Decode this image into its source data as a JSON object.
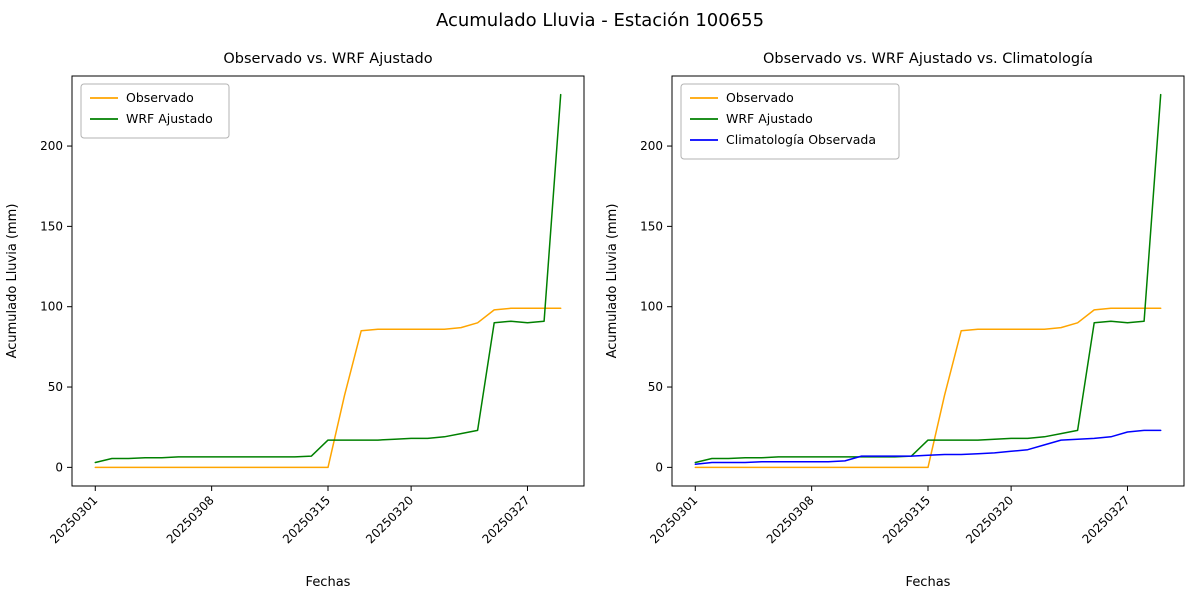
{
  "figure_title": "Acumulado Lluvia - Estación 100655",
  "chart_data": [
    {
      "type": "line",
      "title": "Observado vs. WRF Ajustado",
      "xlabel": "Fechas",
      "ylabel": "Acumulado Lluvia (mm)",
      "legend_position": "upper-left",
      "grid": false,
      "ylim": [
        -11.6,
        243.6
      ],
      "y_ticks": [
        0,
        50,
        100,
        150,
        200
      ],
      "x_tick_labels": [
        "20250301",
        "20250308",
        "20250315",
        "20250320",
        "20250327"
      ],
      "dates": [
        "20250301",
        "20250302",
        "20250303",
        "20250304",
        "20250305",
        "20250306",
        "20250307",
        "20250308",
        "20250309",
        "20250310",
        "20250311",
        "20250312",
        "20250313",
        "20250314",
        "20250315",
        "20250316",
        "20250317",
        "20250318",
        "20250319",
        "20250320",
        "20250321",
        "20250322",
        "20250323",
        "20250324",
        "20250325",
        "20250326",
        "20250327",
        "20250328",
        "20250329"
      ],
      "series": [
        {
          "name": "Observado",
          "color": "#ffa500",
          "values": [
            0,
            0,
            0,
            0,
            0,
            0,
            0,
            0,
            0,
            0,
            0,
            0,
            0,
            0,
            0,
            45,
            85,
            86,
            86,
            86,
            86,
            86,
            87,
            90,
            98,
            99,
            99,
            99,
            99
          ]
        },
        {
          "name": "WRF Ajustado",
          "color": "#008000",
          "values": [
            3,
            5.5,
            5.5,
            6,
            6,
            6.5,
            6.5,
            6.5,
            6.5,
            6.5,
            6.5,
            6.5,
            6.5,
            7,
            17,
            17,
            17,
            17,
            17.5,
            18,
            18,
            19,
            21,
            23,
            90,
            91,
            90,
            91,
            232
          ]
        }
      ]
    },
    {
      "type": "line",
      "title": "Observado vs. WRF Ajustado vs. Climatología",
      "xlabel": "Fechas",
      "ylabel": "Acumulado Lluvia (mm)",
      "legend_position": "upper-left",
      "grid": false,
      "ylim": [
        -11.6,
        243.6
      ],
      "y_ticks": [
        0,
        50,
        100,
        150,
        200
      ],
      "x_tick_labels": [
        "20250301",
        "20250308",
        "20250315",
        "20250320",
        "20250327"
      ],
      "dates": [
        "20250301",
        "20250302",
        "20250303",
        "20250304",
        "20250305",
        "20250306",
        "20250307",
        "20250308",
        "20250309",
        "20250310",
        "20250311",
        "20250312",
        "20250313",
        "20250314",
        "20250315",
        "20250316",
        "20250317",
        "20250318",
        "20250319",
        "20250320",
        "20250321",
        "20250322",
        "20250323",
        "20250324",
        "20250325",
        "20250326",
        "20250327",
        "20250328",
        "20250329"
      ],
      "series": [
        {
          "name": "Observado",
          "color": "#ffa500",
          "values": [
            0,
            0,
            0,
            0,
            0,
            0,
            0,
            0,
            0,
            0,
            0,
            0,
            0,
            0,
            0,
            45,
            85,
            86,
            86,
            86,
            86,
            86,
            87,
            90,
            98,
            99,
            99,
            99,
            99
          ]
        },
        {
          "name": "WRF Ajustado",
          "color": "#008000",
          "values": [
            3,
            5.5,
            5.5,
            6,
            6,
            6.5,
            6.5,
            6.5,
            6.5,
            6.5,
            6.5,
            6.5,
            6.5,
            7,
            17,
            17,
            17,
            17,
            17.5,
            18,
            18,
            19,
            21,
            23,
            90,
            91,
            90,
            91,
            232
          ]
        },
        {
          "name": "Climatología Observada",
          "color": "#0000ff",
          "values": [
            2,
            3,
            3,
            3,
            3.5,
            3.5,
            3.5,
            3.5,
            3.5,
            4,
            7,
            7,
            7,
            7,
            7.5,
            8,
            8,
            8.5,
            9,
            10,
            11,
            14,
            17,
            17.5,
            18,
            19,
            22,
            23,
            23
          ]
        }
      ]
    }
  ]
}
